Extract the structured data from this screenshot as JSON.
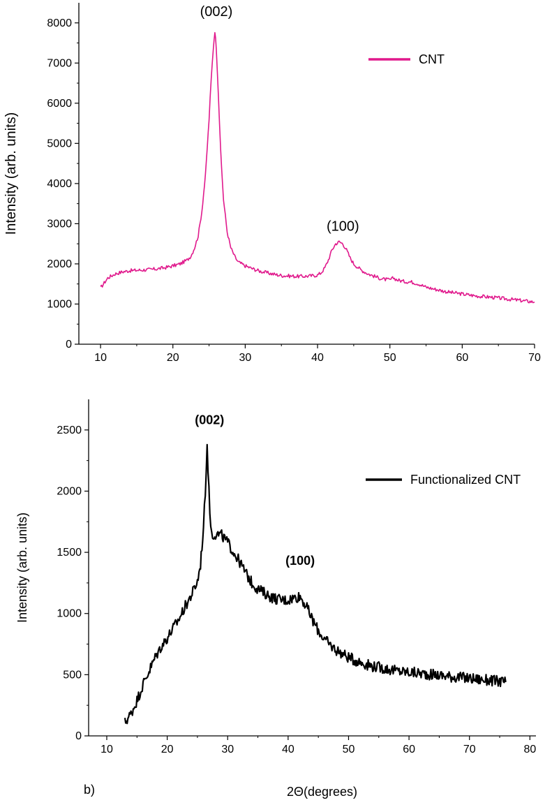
{
  "chart_data": [
    {
      "type": "line",
      "xlabel": "",
      "ylabel": "Intensity (arb. units)",
      "xlim": [
        7,
        70
      ],
      "ylim": [
        0,
        8500
      ],
      "xticks": [
        10,
        20,
        30,
        40,
        50,
        60,
        70
      ],
      "yticks": [
        0,
        1000,
        2000,
        3000,
        4000,
        5000,
        6000,
        7000,
        8000
      ],
      "grid": false,
      "legend_position": "top-right",
      "series": [
        {
          "name": "CNT",
          "color": "#e0198c",
          "x": [
            10,
            11,
            12,
            13,
            14,
            15,
            16,
            17,
            18,
            19,
            20,
            21,
            22,
            22.5,
            23,
            23.5,
            24,
            24.5,
            25,
            25.3,
            25.6,
            25.8,
            26,
            26.3,
            26.6,
            27,
            27.5,
            28,
            28.5,
            29,
            30,
            31,
            32,
            33,
            34,
            35,
            36,
            37,
            38,
            39,
            40,
            40.5,
            41,
            41.5,
            42,
            42.5,
            43,
            43.5,
            44,
            44.5,
            45,
            46,
            47,
            48,
            49,
            50,
            50.5,
            51,
            52,
            53,
            54,
            55,
            56,
            57,
            58,
            60,
            62,
            64,
            66,
            68,
            70
          ],
          "y": [
            1400,
            1650,
            1750,
            1800,
            1830,
            1840,
            1850,
            1860,
            1880,
            1910,
            1950,
            2000,
            2100,
            2200,
            2400,
            2700,
            3300,
            4200,
            5600,
            6600,
            7400,
            7800,
            7400,
            6200,
            4800,
            3600,
            2800,
            2400,
            2200,
            2050,
            1950,
            1880,
            1820,
            1780,
            1740,
            1710,
            1700,
            1690,
            1690,
            1700,
            1720,
            1780,
            1900,
            2100,
            2350,
            2500,
            2550,
            2500,
            2350,
            2150,
            2000,
            1850,
            1750,
            1680,
            1620,
            1600,
            1650,
            1600,
            1560,
            1550,
            1500,
            1420,
            1380,
            1340,
            1300,
            1250,
            1200,
            1170,
            1130,
            1090,
            1050
          ]
        }
      ],
      "annotations": [
        {
          "text": "(002)",
          "x": 26,
          "y": 8000
        },
        {
          "text": "(100)",
          "x": 43.5,
          "y": 2650
        }
      ]
    },
    {
      "type": "line",
      "xlabel": "2Θ(degrees)",
      "ylabel": "Intensity (arb. units)",
      "xlim": [
        7,
        81
      ],
      "ylim": [
        0,
        2750
      ],
      "xticks": [
        10,
        20,
        30,
        40,
        50,
        60,
        70,
        80
      ],
      "yticks": [
        0,
        500,
        1000,
        1500,
        2000,
        2500
      ],
      "grid": false,
      "legend_position": "top-right",
      "panel_label": "b)",
      "series": [
        {
          "name": "Functionalized CNT",
          "color": "#000000",
          "x": [
            13,
            14,
            15,
            16,
            17,
            18,
            19,
            20,
            21,
            22,
            23,
            24,
            25,
            25.5,
            26,
            26.3,
            26.6,
            26.9,
            27.2,
            27.5,
            28,
            29,
            30,
            31,
            32,
            33,
            34,
            35,
            36,
            37,
            38,
            39,
            40,
            41,
            42,
            43,
            44,
            45,
            46,
            47,
            48,
            50,
            52,
            54,
            56,
            58,
            60,
            62,
            64,
            66,
            68,
            70,
            72,
            74,
            76
          ],
          "y": [
            110,
            180,
            290,
            420,
            530,
            640,
            730,
            800,
            880,
            960,
            1060,
            1150,
            1260,
            1400,
            1700,
            2000,
            2380,
            2000,
            1700,
            1640,
            1650,
            1640,
            1580,
            1500,
            1420,
            1330,
            1250,
            1200,
            1170,
            1140,
            1120,
            1110,
            1110,
            1130,
            1140,
            1060,
            950,
            860,
            790,
            740,
            700,
            640,
            600,
            570,
            550,
            530,
            520,
            510,
            500,
            490,
            480,
            470,
            460,
            450,
            440
          ]
        }
      ],
      "annotations": [
        {
          "text": "(002)",
          "x": 27,
          "y": 2480
        },
        {
          "text": "(100)",
          "x": 42,
          "y": 1330
        }
      ]
    }
  ]
}
